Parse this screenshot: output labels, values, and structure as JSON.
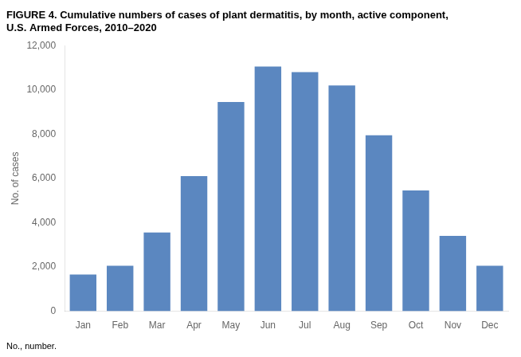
{
  "chart_data": {
    "type": "bar",
    "title": "FIGURE 4. Cumulative numbers of cases of plant dermatitis, by month, active component,\nU.S. Armed Forces, 2010–2020",
    "annotations": [
      "No., number."
    ],
    "ylabel": "No. of cases",
    "categories": [
      "Jan",
      "Feb",
      "Mar",
      "Apr",
      "May",
      "Jun",
      "Jul",
      "Aug",
      "Sep",
      "Oct",
      "Nov",
      "Dec"
    ],
    "values": [
      1650,
      2050,
      3550,
      6100,
      9450,
      11050,
      10800,
      10200,
      7950,
      5450,
      3400,
      2050
    ],
    "color": "#5b87c0",
    "ylim": [
      0,
      12000
    ],
    "yticks": [
      0,
      {
        "value": 2000,
        "label": "2,000"
      },
      {
        "value": 4000,
        "label": "4,000"
      },
      {
        "value": 6000,
        "label": "6,000"
      },
      {
        "value": 8000,
        "label": "8,000"
      },
      {
        "value": 10000,
        "label": "10,000"
      },
      {
        "value": 12000,
        "label": "12,000"
      }
    ],
    "grid": false
  }
}
